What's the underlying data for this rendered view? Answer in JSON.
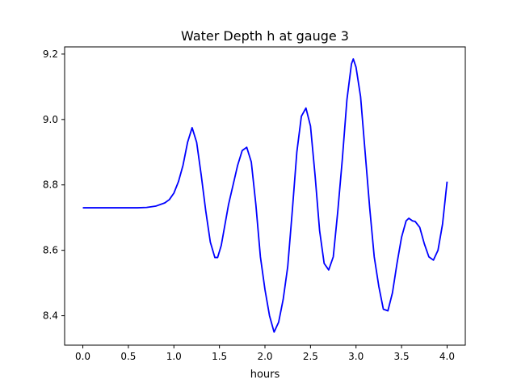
{
  "chart_data": {
    "type": "line",
    "title": "Water Depth h at gauge 3",
    "xlabel": "hours",
    "ylabel": "",
    "xlim": [
      -0.2,
      4.2
    ],
    "ylim": [
      8.31,
      9.222
    ],
    "xticks": [
      0.0,
      0.5,
      1.0,
      1.5,
      2.0,
      2.5,
      3.0,
      3.5,
      4.0
    ],
    "xtick_labels": [
      "0.0",
      "0.5",
      "1.0",
      "1.5",
      "2.0",
      "2.5",
      "3.0",
      "3.5",
      "4.0"
    ],
    "yticks": [
      8.4,
      8.6,
      8.8,
      9.0,
      9.2
    ],
    "ytick_labels": [
      "8.4",
      "8.6",
      "8.8",
      "9.0",
      "9.2"
    ],
    "grid": false,
    "series": [
      {
        "color": "#0000ff",
        "x": [
          0.0,
          0.2,
          0.4,
          0.6,
          0.7,
          0.8,
          0.9,
          0.95,
          1.0,
          1.05,
          1.1,
          1.15,
          1.2,
          1.25,
          1.3,
          1.35,
          1.4,
          1.45,
          1.48,
          1.52,
          1.6,
          1.7,
          1.75,
          1.8,
          1.85,
          1.9,
          1.95,
          2.0,
          2.05,
          2.1,
          2.15,
          2.2,
          2.25,
          2.3,
          2.35,
          2.4,
          2.45,
          2.5,
          2.55,
          2.6,
          2.65,
          2.7,
          2.75,
          2.8,
          2.85,
          2.9,
          2.95,
          2.97,
          3.0,
          3.05,
          3.1,
          3.15,
          3.2,
          3.25,
          3.3,
          3.35,
          3.4,
          3.45,
          3.5,
          3.55,
          3.58,
          3.62,
          3.65,
          3.7,
          3.75,
          3.8,
          3.85,
          3.9,
          3.95,
          4.0
        ],
        "y": [
          8.73,
          8.73,
          8.73,
          8.73,
          8.731,
          8.735,
          8.745,
          8.755,
          8.775,
          8.81,
          8.86,
          8.93,
          8.975,
          8.93,
          8.83,
          8.72,
          8.625,
          8.578,
          8.578,
          8.615,
          8.74,
          8.86,
          8.905,
          8.915,
          8.87,
          8.74,
          8.58,
          8.48,
          8.4,
          8.35,
          8.38,
          8.45,
          8.55,
          8.72,
          8.9,
          9.01,
          9.035,
          8.98,
          8.83,
          8.66,
          8.56,
          8.54,
          8.58,
          8.72,
          8.88,
          9.06,
          9.17,
          9.185,
          9.16,
          9.07,
          8.9,
          8.73,
          8.58,
          8.49,
          8.42,
          8.415,
          8.47,
          8.56,
          8.64,
          8.69,
          8.698,
          8.69,
          8.688,
          8.67,
          8.62,
          8.58,
          8.57,
          8.6,
          8.68,
          8.81
        ]
      }
    ]
  }
}
